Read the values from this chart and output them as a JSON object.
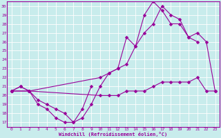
{
  "xlabel": "Windchill (Refroidissement éolien,°C)",
  "bg_color": "#c8ecec",
  "grid_color": "#ffffff",
  "line_color": "#990099",
  "xlim": [
    -0.5,
    23.5
  ],
  "ylim": [
    16.5,
    30.5
  ],
  "yticks": [
    17,
    18,
    19,
    20,
    21,
    22,
    23,
    24,
    25,
    26,
    27,
    28,
    29,
    30
  ],
  "xticks": [
    0,
    1,
    2,
    3,
    4,
    5,
    6,
    7,
    8,
    9,
    10,
    11,
    12,
    13,
    14,
    15,
    16,
    17,
    18,
    19,
    20,
    21,
    22,
    23
  ],
  "lines": [
    [
      0,
      1,
      2,
      3,
      4,
      5,
      6,
      7,
      8,
      9
    ],
    [
      20.5,
      21.0,
      20.5,
      19.0,
      18.5,
      17.5,
      17.0,
      17.0,
      18.5,
      21.0
    ]
  ],
  "line1_x": [
    0,
    1,
    2,
    3,
    4,
    5,
    6,
    7,
    8,
    9
  ],
  "line1_y": [
    20.5,
    21.0,
    20.5,
    19.0,
    18.5,
    17.5,
    17.0,
    17.0,
    18.5,
    21.0
  ],
  "line2_x": [
    0,
    2,
    10,
    11,
    12,
    13,
    14,
    15,
    16,
    17,
    18,
    19,
    20,
    21
  ],
  "line2_y": [
    20.5,
    20.5,
    22.0,
    22.5,
    23.0,
    23.5,
    25.5,
    27.0,
    28.0,
    30.0,
    29.0,
    28.5,
    26.5,
    26.0
  ],
  "line3_x": [
    0,
    2,
    10,
    11,
    12,
    13,
    14,
    15,
    16,
    17,
    18,
    19,
    20,
    21,
    22,
    23
  ],
  "line3_y": [
    20.5,
    20.5,
    20.0,
    20.0,
    20.0,
    20.5,
    20.5,
    20.5,
    21.0,
    21.5,
    21.5,
    21.5,
    21.5,
    22.0,
    20.5,
    20.5
  ],
  "line4_x": [
    0,
    1,
    2,
    3,
    4,
    5,
    6,
    7,
    8,
    9,
    10,
    11,
    12,
    13,
    14,
    15,
    16,
    17,
    18,
    19,
    20,
    21,
    22,
    23
  ],
  "line4_y": [
    20.5,
    21.0,
    20.5,
    19.5,
    19.0,
    18.5,
    18.0,
    17.0,
    17.5,
    19.0,
    21.0,
    22.5,
    23.0,
    26.5,
    25.5,
    29.0,
    30.5,
    29.5,
    28.0,
    28.0,
    26.5,
    27.0,
    26.0,
    20.5
  ]
}
